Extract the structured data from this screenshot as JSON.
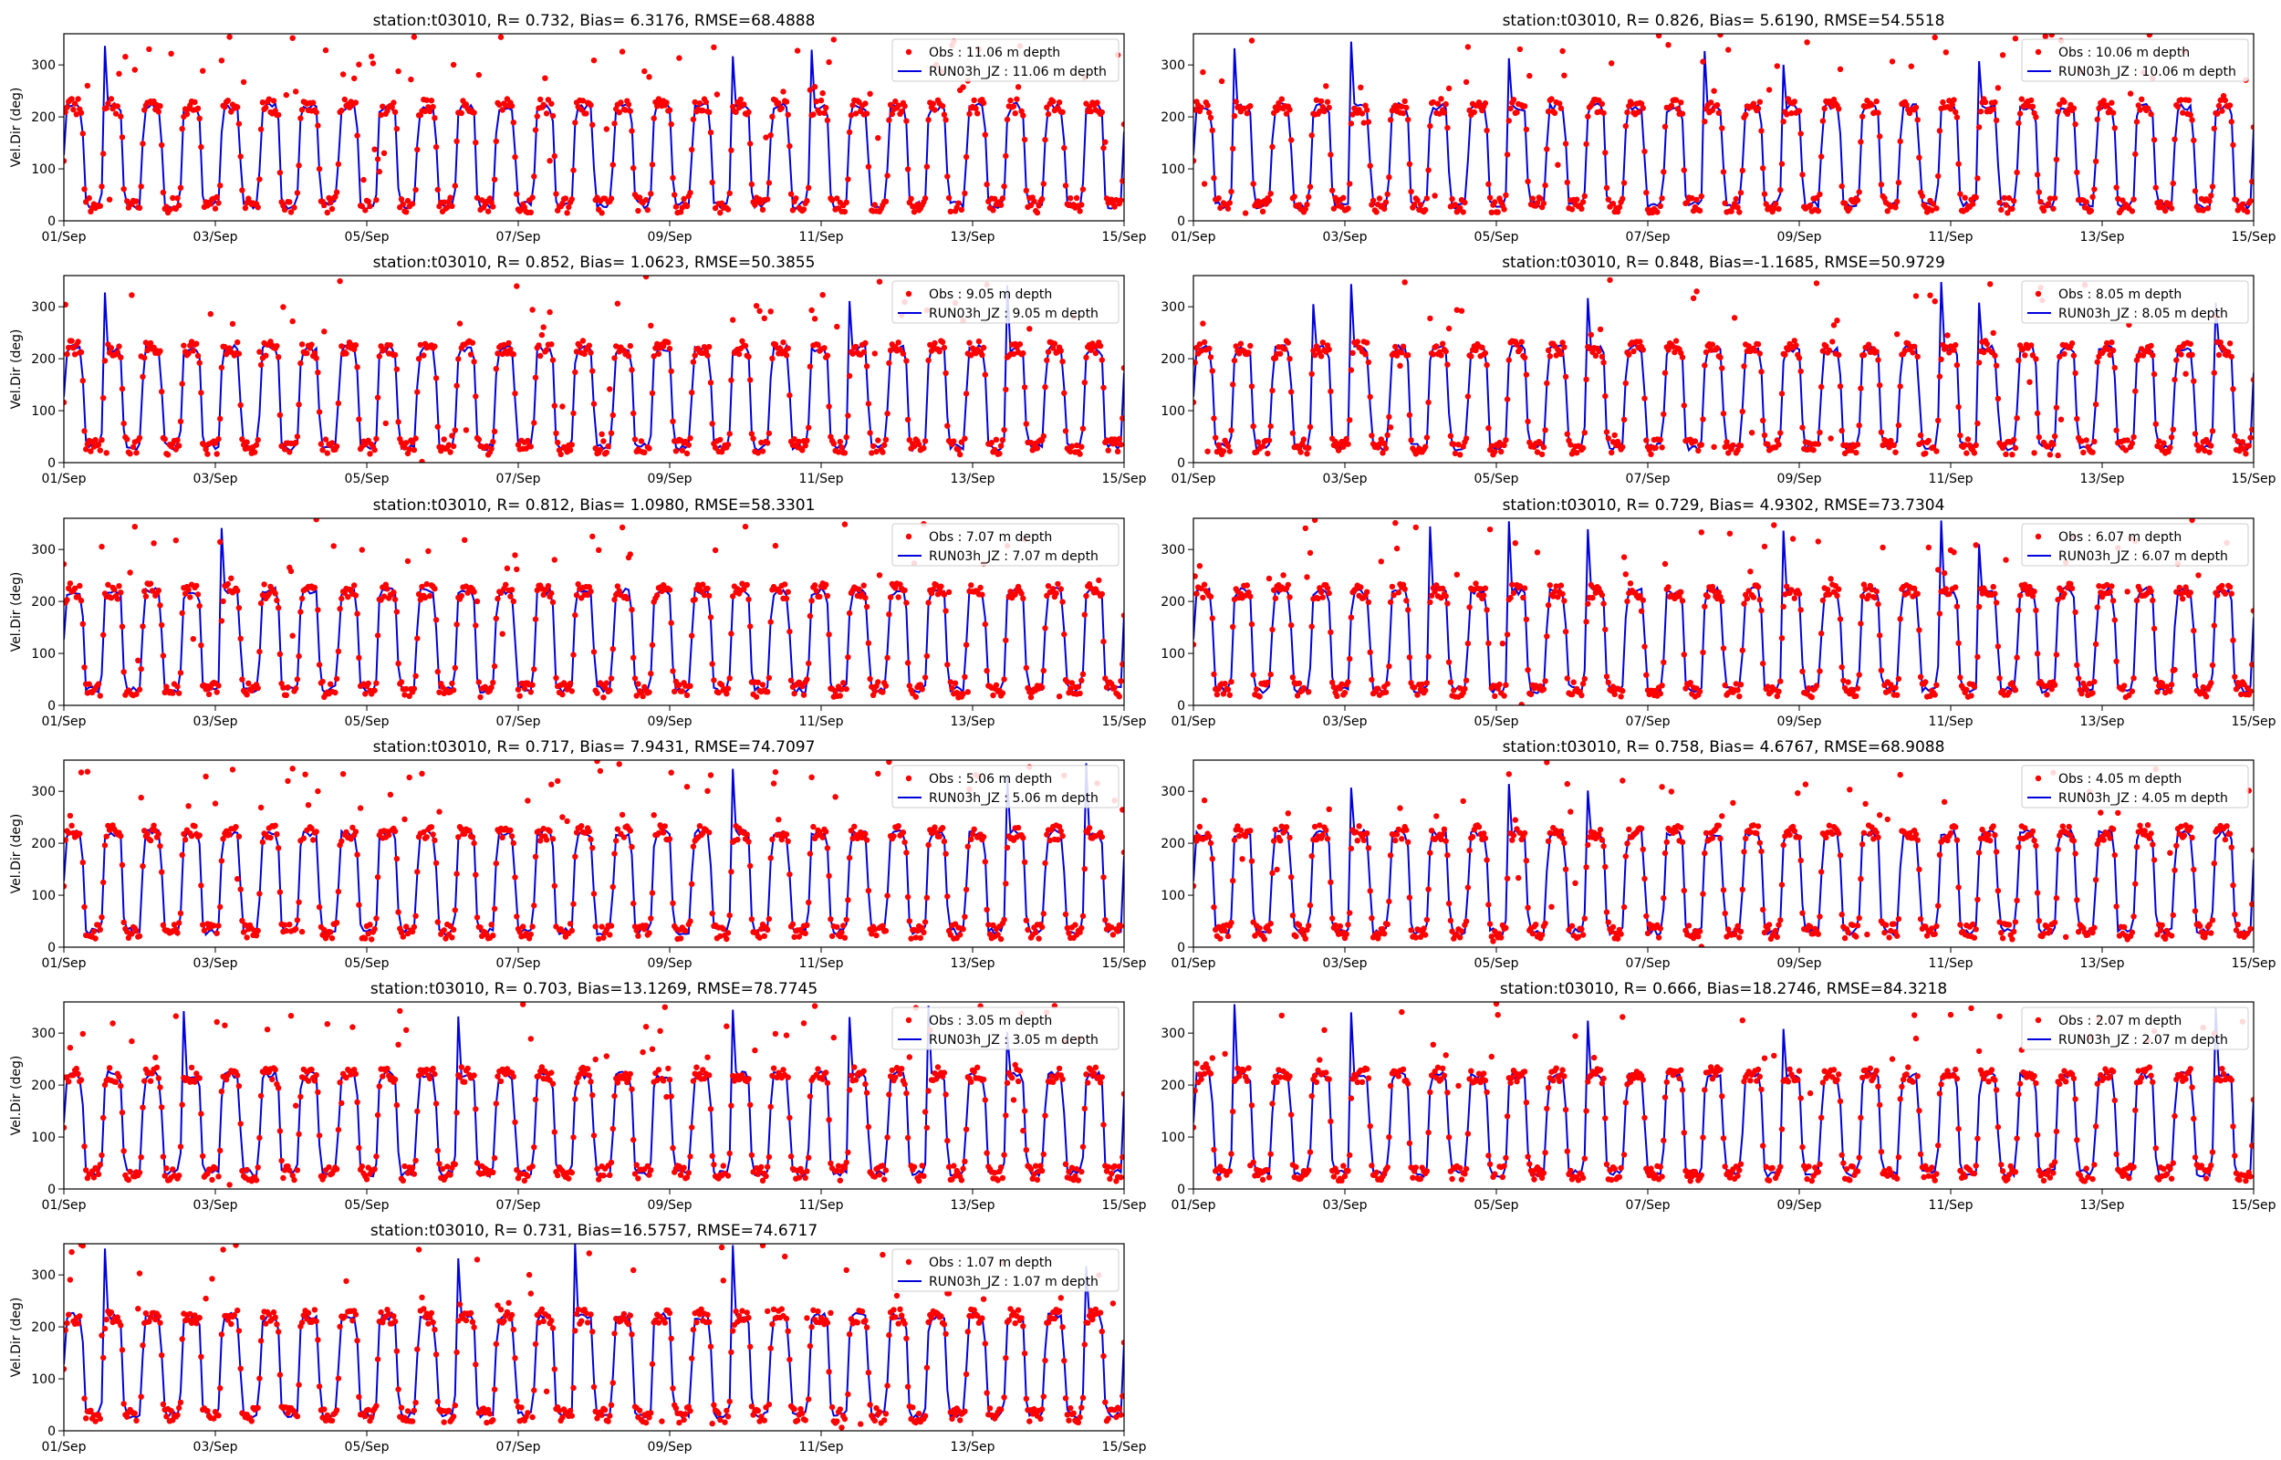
{
  "colors": {
    "obs": "#ff0000",
    "model": "#0000dd",
    "axes": "#000000",
    "legend_border": "#cccccc"
  },
  "chart_data": [
    {
      "type": "line",
      "title": "station:t03010, R= 0.732, Bias= 6.3176, RMSE=68.4888",
      "ylabel": "Vel.Dir (deg)",
      "xlabel": "",
      "x_ticks": [
        "01/Sep",
        "03/Sep",
        "05/Sep",
        "07/Sep",
        "09/Sep",
        "11/Sep",
        "13/Sep",
        "15/Sep"
      ],
      "xlim": [
        "01/Sep",
        "15/Sep"
      ],
      "y_ticks": [
        0,
        100,
        200,
        300
      ],
      "ylim": [
        0,
        360
      ],
      "grid": false,
      "legend_position": "top-right",
      "series": [
        {
          "name": "Obs : 11.06 m depth",
          "style": "scatter",
          "values": "~30 to ~220 deg alternating, semi-diurnal, with scattered outliers up to 360"
        },
        {
          "name": "RUN03h_JZ : 11.06 m depth",
          "style": "line",
          "values": "~30 to ~220 deg alternating, semi-diurnal"
        }
      ]
    },
    {
      "type": "line",
      "title": "station:t03010, R= 0.826, Bias= 5.6190, RMSE=54.5518",
      "ylabel": "",
      "xlabel": "",
      "x_ticks": [
        "01/Sep",
        "03/Sep",
        "05/Sep",
        "07/Sep",
        "09/Sep",
        "11/Sep",
        "13/Sep",
        "15/Sep"
      ],
      "xlim": [
        "01/Sep",
        "15/Sep"
      ],
      "y_ticks": [
        0,
        100,
        200,
        300
      ],
      "ylim": [
        0,
        360
      ],
      "grid": false,
      "legend_position": "top-right",
      "series": [
        {
          "name": "Obs : 10.06 m depth",
          "style": "scatter",
          "values": "~30 to ~220 deg alternating"
        },
        {
          "name": "RUN03h_JZ : 10.06 m depth",
          "style": "line",
          "values": "~30 to ~220 deg alternating"
        }
      ]
    },
    {
      "type": "line",
      "title": "station:t03010, R= 0.852, Bias= 1.0623, RMSE=50.3855",
      "ylabel": "Vel.Dir (deg)",
      "xlabel": "",
      "x_ticks": [
        "01/Sep",
        "03/Sep",
        "05/Sep",
        "07/Sep",
        "09/Sep",
        "11/Sep",
        "13/Sep",
        "15/Sep"
      ],
      "xlim": [
        "01/Sep",
        "15/Sep"
      ],
      "y_ticks": [
        0,
        100,
        200,
        300
      ],
      "ylim": [
        0,
        360
      ],
      "grid": false,
      "legend_position": "top-right",
      "series": [
        {
          "name": "Obs : 9.05 m depth",
          "style": "scatter",
          "values": "~30 to ~220 deg alternating"
        },
        {
          "name": "RUN03h_JZ : 9.05 m depth",
          "style": "line",
          "values": "~30 to ~220 deg alternating"
        }
      ]
    },
    {
      "type": "line",
      "title": "station:t03010, R= 0.848, Bias=-1.1685, RMSE=50.9729",
      "ylabel": "",
      "xlabel": "",
      "x_ticks": [
        "01/Sep",
        "03/Sep",
        "05/Sep",
        "07/Sep",
        "09/Sep",
        "11/Sep",
        "13/Sep",
        "15/Sep"
      ],
      "xlim": [
        "01/Sep",
        "15/Sep"
      ],
      "y_ticks": [
        0,
        100,
        200,
        300
      ],
      "ylim": [
        0,
        360
      ],
      "grid": false,
      "legend_position": "top-right",
      "series": [
        {
          "name": "Obs : 8.05 m depth",
          "style": "scatter",
          "values": "~30 to ~220 deg alternating"
        },
        {
          "name": "RUN03h_JZ : 8.05 m depth",
          "style": "line",
          "values": "~30 to ~220 deg alternating"
        }
      ]
    },
    {
      "type": "line",
      "title": "station:t03010, R= 0.812, Bias= 1.0980, RMSE=58.3301",
      "ylabel": "Vel.Dir (deg)",
      "xlabel": "",
      "x_ticks": [
        "01/Sep",
        "03/Sep",
        "05/Sep",
        "07/Sep",
        "09/Sep",
        "11/Sep",
        "13/Sep",
        "15/Sep"
      ],
      "xlim": [
        "01/Sep",
        "15/Sep"
      ],
      "y_ticks": [
        0,
        100,
        200,
        300
      ],
      "ylim": [
        0,
        360
      ],
      "grid": false,
      "legend_position": "top-right",
      "series": [
        {
          "name": "Obs : 7.07 m depth",
          "style": "scatter",
          "values": "~30 to ~220 deg alternating"
        },
        {
          "name": "RUN03h_JZ : 7.07 m depth",
          "style": "line",
          "values": "~30 to ~220 deg alternating"
        }
      ]
    },
    {
      "type": "line",
      "title": "station:t03010, R= 0.729, Bias= 4.9302, RMSE=73.7304",
      "ylabel": "",
      "xlabel": "",
      "x_ticks": [
        "01/Sep",
        "03/Sep",
        "05/Sep",
        "07/Sep",
        "09/Sep",
        "11/Sep",
        "13/Sep",
        "15/Sep"
      ],
      "xlim": [
        "01/Sep",
        "15/Sep"
      ],
      "y_ticks": [
        0,
        100,
        200,
        300
      ],
      "ylim": [
        0,
        360
      ],
      "grid": false,
      "legend_position": "top-right",
      "series": [
        {
          "name": "Obs : 6.07 m depth",
          "style": "scatter",
          "values": "~30 to ~220 deg alternating"
        },
        {
          "name": "RUN03h_JZ : 6.07 m depth",
          "style": "line",
          "values": "~30 to ~220 deg alternating"
        }
      ]
    },
    {
      "type": "line",
      "title": "station:t03010, R= 0.717, Bias= 7.9431, RMSE=74.7097",
      "ylabel": "Vel.Dir (deg)",
      "xlabel": "",
      "x_ticks": [
        "01/Sep",
        "03/Sep",
        "05/Sep",
        "07/Sep",
        "09/Sep",
        "11/Sep",
        "13/Sep",
        "15/Sep"
      ],
      "xlim": [
        "01/Sep",
        "15/Sep"
      ],
      "y_ticks": [
        0,
        100,
        200,
        300
      ],
      "ylim": [
        0,
        360
      ],
      "grid": false,
      "legend_position": "top-right",
      "series": [
        {
          "name": "Obs : 5.06 m depth",
          "style": "scatter",
          "values": "~30 to ~220 deg alternating"
        },
        {
          "name": "RUN03h_JZ : 5.06 m depth",
          "style": "line",
          "values": "~30 to ~220 deg alternating"
        }
      ]
    },
    {
      "type": "line",
      "title": "station:t03010, R= 0.758, Bias= 4.6767, RMSE=68.9088",
      "ylabel": "",
      "xlabel": "",
      "x_ticks": [
        "01/Sep",
        "03/Sep",
        "05/Sep",
        "07/Sep",
        "09/Sep",
        "11/Sep",
        "13/Sep",
        "15/Sep"
      ],
      "xlim": [
        "01/Sep",
        "15/Sep"
      ],
      "y_ticks": [
        0,
        100,
        200,
        300
      ],
      "ylim": [
        0,
        360
      ],
      "grid": false,
      "legend_position": "top-right",
      "series": [
        {
          "name": "Obs : 4.05 m depth",
          "style": "scatter",
          "values": "~30 to ~220 deg alternating"
        },
        {
          "name": "RUN03h_JZ : 4.05 m depth",
          "style": "line",
          "values": "~30 to ~220 deg alternating"
        }
      ]
    },
    {
      "type": "line",
      "title": "station:t03010, R= 0.703, Bias=13.1269, RMSE=78.7745",
      "ylabel": "Vel.Dir (deg)",
      "xlabel": "",
      "x_ticks": [
        "01/Sep",
        "03/Sep",
        "05/Sep",
        "07/Sep",
        "09/Sep",
        "11/Sep",
        "13/Sep",
        "15/Sep"
      ],
      "xlim": [
        "01/Sep",
        "15/Sep"
      ],
      "y_ticks": [
        0,
        100,
        200,
        300
      ],
      "ylim": [
        0,
        360
      ],
      "grid": false,
      "legend_position": "top-right",
      "series": [
        {
          "name": "Obs : 3.05 m depth",
          "style": "scatter",
          "values": "~30 to ~220 deg alternating"
        },
        {
          "name": "RUN03h_JZ : 3.05 m depth",
          "style": "line",
          "values": "~30 to ~220 deg alternating"
        }
      ]
    },
    {
      "type": "line",
      "title": "station:t03010, R= 0.666, Bias=18.2746, RMSE=84.3218",
      "ylabel": "",
      "xlabel": "",
      "x_ticks": [
        "01/Sep",
        "03/Sep",
        "05/Sep",
        "07/Sep",
        "09/Sep",
        "11/Sep",
        "13/Sep",
        "15/Sep"
      ],
      "xlim": [
        "01/Sep",
        "15/Sep"
      ],
      "y_ticks": [
        0,
        100,
        200,
        300
      ],
      "ylim": [
        0,
        360
      ],
      "grid": false,
      "legend_position": "top-right",
      "series": [
        {
          "name": "Obs : 2.07 m depth",
          "style": "scatter",
          "values": "~30 to ~220 deg alternating"
        },
        {
          "name": "RUN03h_JZ : 2.07 m depth",
          "style": "line",
          "values": "~30 to ~220 deg alternating"
        }
      ]
    },
    {
      "type": "line",
      "title": "station:t03010, R= 0.731, Bias=16.5757, RMSE=74.6717",
      "ylabel": "Vel.Dir (deg)",
      "xlabel": "",
      "x_ticks": [
        "01/Sep",
        "03/Sep",
        "05/Sep",
        "07/Sep",
        "09/Sep",
        "11/Sep",
        "13/Sep",
        "15/Sep"
      ],
      "xlim": [
        "01/Sep",
        "15/Sep"
      ],
      "y_ticks": [
        0,
        100,
        200,
        300
      ],
      "ylim": [
        0,
        360
      ],
      "grid": false,
      "legend_position": "top-right",
      "series": [
        {
          "name": "Obs : 1.07 m depth",
          "style": "scatter",
          "values": "~30 to ~220 deg alternating"
        },
        {
          "name": "RUN03h_JZ : 1.07 m depth",
          "style": "line",
          "values": "~30 to ~220 deg alternating"
        }
      ]
    }
  ]
}
